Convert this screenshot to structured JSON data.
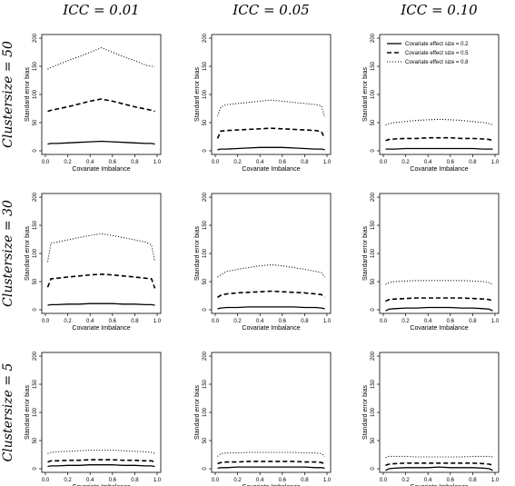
{
  "figure": {
    "col_titles": [
      "ICC = 0.01",
      "ICC = 0.05",
      "ICC = 0.10"
    ],
    "row_titles": [
      "Clustersize = 50",
      "Clustersize = 30",
      "Clustersize = 5"
    ]
  },
  "legend": {
    "entries": [
      {
        "label": "Covariate effect size = 0.2",
        "style": "solid"
      },
      {
        "label": "Covariate effect size = 0.5",
        "style": "dashed"
      },
      {
        "label": "Covariate effect size = 0.8",
        "style": "dotted"
      }
    ]
  },
  "chart_data": {
    "type": "line",
    "layout": "3x3 small multiples",
    "xlabel": "Covariate Imbalance",
    "ylabel": "Standard error bias",
    "xlim": [
      0,
      1
    ],
    "ylim": [
      0,
      200
    ],
    "x_ticks": [
      "0.0",
      "0.2",
      "0.4",
      "0.6",
      "0.8",
      "1.0"
    ],
    "y_ticks": [
      "0",
      "50",
      "100",
      "150",
      "200"
    ],
    "panels": [
      {
        "row": 0,
        "col": 0,
        "series": [
          {
            "style": "solid",
            "x": [
              0.02,
              0.05,
              0.1,
              0.2,
              0.3,
              0.4,
              0.5,
              0.6,
              0.7,
              0.8,
              0.9,
              0.95,
              0.98
            ],
            "y": [
              12,
              13,
              13,
              14,
              15,
              16,
              17,
              16,
              15,
              14,
              13,
              13,
              12
            ]
          },
          {
            "style": "dashed",
            "x": [
              0.02,
              0.05,
              0.1,
              0.2,
              0.3,
              0.4,
              0.5,
              0.6,
              0.7,
              0.8,
              0.9,
              0.95,
              0.98
            ],
            "y": [
              70,
              72,
              74,
              78,
              83,
              88,
              92,
              88,
              83,
              78,
              74,
              72,
              70
            ]
          },
          {
            "style": "dotted",
            "x": [
              0.02,
              0.05,
              0.1,
              0.2,
              0.3,
              0.4,
              0.5,
              0.6,
              0.7,
              0.8,
              0.9,
              0.95,
              0.98
            ],
            "y": [
              145,
              148,
              152,
              160,
              167,
              175,
              183,
              175,
              167,
              160,
              152,
              150,
              150
            ]
          }
        ]
      },
      {
        "row": 0,
        "col": 1,
        "series": [
          {
            "style": "solid",
            "x": [
              0.02,
              0.05,
              0.1,
              0.2,
              0.3,
              0.4,
              0.5,
              0.6,
              0.7,
              0.8,
              0.9,
              0.95,
              0.98
            ],
            "y": [
              2,
              3,
              3,
              4,
              5,
              6,
              6,
              6,
              5,
              4,
              3,
              3,
              2
            ]
          },
          {
            "style": "dashed",
            "x": [
              0.02,
              0.05,
              0.1,
              0.2,
              0.3,
              0.4,
              0.5,
              0.6,
              0.7,
              0.8,
              0.9,
              0.95,
              0.98
            ],
            "y": [
              22,
              35,
              36,
              37,
              38,
              39,
              40,
              39,
              38,
              37,
              36,
              34,
              22
            ]
          },
          {
            "style": "dotted",
            "x": [
              0.02,
              0.05,
              0.1,
              0.2,
              0.3,
              0.4,
              0.5,
              0.6,
              0.7,
              0.8,
              0.9,
              0.95,
              0.98
            ],
            "y": [
              62,
              78,
              82,
              84,
              86,
              88,
              90,
              88,
              86,
              84,
              82,
              80,
              60
            ]
          }
        ]
      },
      {
        "row": 0,
        "col": 2,
        "series": [
          {
            "style": "solid",
            "x": [
              0.02,
              0.05,
              0.1,
              0.2,
              0.3,
              0.4,
              0.5,
              0.6,
              0.7,
              0.8,
              0.9,
              0.95,
              0.98
            ],
            "y": [
              3,
              3,
              3,
              4,
              4,
              4,
              4,
              4,
              4,
              4,
              3,
              3,
              3
            ]
          },
          {
            "style": "dashed",
            "x": [
              0.02,
              0.05,
              0.1,
              0.2,
              0.3,
              0.4,
              0.5,
              0.6,
              0.7,
              0.8,
              0.9,
              0.95,
              0.98
            ],
            "y": [
              18,
              20,
              21,
              22,
              22,
              23,
              23,
              23,
              22,
              22,
              21,
              20,
              18
            ]
          },
          {
            "style": "dotted",
            "x": [
              0.02,
              0.05,
              0.1,
              0.2,
              0.3,
              0.4,
              0.5,
              0.6,
              0.7,
              0.8,
              0.9,
              0.95,
              0.98
            ],
            "y": [
              46,
              48,
              50,
              52,
              54,
              55,
              56,
              55,
              54,
              52,
              50,
              48,
              46
            ]
          }
        ]
      },
      {
        "row": 1,
        "col": 0,
        "series": [
          {
            "style": "solid",
            "x": [
              0.02,
              0.05,
              0.1,
              0.2,
              0.3,
              0.4,
              0.5,
              0.6,
              0.7,
              0.8,
              0.9,
              0.95,
              0.98
            ],
            "y": [
              8,
              9,
              9,
              10,
              10,
              11,
              11,
              11,
              10,
              10,
              9,
              9,
              8
            ]
          },
          {
            "style": "dashed",
            "x": [
              0.02,
              0.05,
              0.1,
              0.2,
              0.3,
              0.4,
              0.5,
              0.6,
              0.7,
              0.8,
              0.9,
              0.95,
              0.98
            ],
            "y": [
              40,
              55,
              56,
              58,
              60,
              62,
              63,
              62,
              60,
              58,
              56,
              55,
              38
            ]
          },
          {
            "style": "dotted",
            "x": [
              0.02,
              0.05,
              0.1,
              0.2,
              0.3,
              0.4,
              0.5,
              0.6,
              0.7,
              0.8,
              0.9,
              0.95,
              0.98
            ],
            "y": [
              85,
              118,
              120,
              124,
              128,
              132,
              135,
              132,
              128,
              124,
              120,
              115,
              85
            ]
          }
        ]
      },
      {
        "row": 1,
        "col": 1,
        "series": [
          {
            "style": "solid",
            "x": [
              0.02,
              0.05,
              0.1,
              0.2,
              0.3,
              0.4,
              0.5,
              0.6,
              0.7,
              0.8,
              0.9,
              0.95,
              0.98
            ],
            "y": [
              2,
              3,
              4,
              4,
              5,
              5,
              5,
              5,
              5,
              4,
              4,
              3,
              2
            ]
          },
          {
            "style": "dashed",
            "x": [
              0.02,
              0.05,
              0.1,
              0.2,
              0.3,
              0.4,
              0.5,
              0.6,
              0.7,
              0.8,
              0.9,
              0.95,
              0.98
            ],
            "y": [
              22,
              26,
              28,
              30,
              31,
              32,
              33,
              32,
              31,
              30,
              28,
              27,
              22
            ]
          },
          {
            "style": "dotted",
            "x": [
              0.02,
              0.05,
              0.1,
              0.2,
              0.3,
              0.4,
              0.5,
              0.6,
              0.7,
              0.8,
              0.9,
              0.95,
              0.98
            ],
            "y": [
              58,
              62,
              68,
              72,
              75,
              78,
              80,
              78,
              75,
              72,
              68,
              66,
              58
            ]
          }
        ]
      },
      {
        "row": 1,
        "col": 2,
        "series": [
          {
            "style": "solid",
            "x": [
              0.02,
              0.05,
              0.1,
              0.2,
              0.3,
              0.4,
              0.5,
              0.6,
              0.7,
              0.8,
              0.9,
              0.95,
              0.98
            ],
            "y": [
              -2,
              1,
              2,
              3,
              3,
              4,
              4,
              4,
              3,
              3,
              2,
              1,
              -2
            ]
          },
          {
            "style": "dashed",
            "x": [
              0.02,
              0.05,
              0.1,
              0.2,
              0.3,
              0.4,
              0.5,
              0.6,
              0.7,
              0.8,
              0.9,
              0.95,
              0.98
            ],
            "y": [
              15,
              18,
              19,
              20,
              21,
              21,
              21,
              21,
              21,
              20,
              19,
              18,
              15
            ]
          },
          {
            "style": "dotted",
            "x": [
              0.02,
              0.05,
              0.1,
              0.2,
              0.3,
              0.4,
              0.5,
              0.6,
              0.7,
              0.8,
              0.9,
              0.95,
              0.98
            ],
            "y": [
              45,
              48,
              50,
              51,
              52,
              52,
              52,
              52,
              52,
              51,
              50,
              48,
              45
            ]
          }
        ]
      },
      {
        "row": 2,
        "col": 0,
        "series": [
          {
            "style": "solid",
            "x": [
              0.02,
              0.05,
              0.1,
              0.2,
              0.3,
              0.4,
              0.5,
              0.6,
              0.7,
              0.8,
              0.9,
              0.95,
              0.98
            ],
            "y": [
              4,
              5,
              5,
              6,
              6,
              7,
              7,
              7,
              6,
              6,
              5,
              5,
              4
            ]
          },
          {
            "style": "dashed",
            "x": [
              0.02,
              0.05,
              0.1,
              0.2,
              0.3,
              0.4,
              0.5,
              0.6,
              0.7,
              0.8,
              0.9,
              0.95,
              0.98
            ],
            "y": [
              12,
              14,
              14,
              15,
              15,
              16,
              16,
              16,
              15,
              15,
              14,
              14,
              12
            ]
          },
          {
            "style": "dotted",
            "x": [
              0.02,
              0.05,
              0.1,
              0.2,
              0.3,
              0.4,
              0.5,
              0.6,
              0.7,
              0.8,
              0.9,
              0.95,
              0.98
            ],
            "y": [
              27,
              29,
              30,
              31,
              32,
              33,
              33,
              33,
              32,
              31,
              30,
              29,
              27
            ]
          }
        ]
      },
      {
        "row": 2,
        "col": 1,
        "series": [
          {
            "style": "solid",
            "x": [
              0.02,
              0.05,
              0.1,
              0.2,
              0.3,
              0.4,
              0.5,
              0.6,
              0.7,
              0.8,
              0.9,
              0.95,
              0.98
            ],
            "y": [
              1,
              2,
              2,
              3,
              3,
              3,
              3,
              3,
              3,
              3,
              2,
              2,
              1
            ]
          },
          {
            "style": "dashed",
            "x": [
              0.02,
              0.05,
              0.1,
              0.2,
              0.3,
              0.4,
              0.5,
              0.6,
              0.7,
              0.8,
              0.9,
              0.95,
              0.98
            ],
            "y": [
              9,
              11,
              12,
              12,
              13,
              13,
              13,
              13,
              13,
              12,
              12,
              11,
              9
            ]
          },
          {
            "style": "dotted",
            "x": [
              0.02,
              0.05,
              0.1,
              0.2,
              0.3,
              0.4,
              0.5,
              0.6,
              0.7,
              0.8,
              0.9,
              0.95,
              0.98
            ],
            "y": [
              22,
              27,
              28,
              28,
              29,
              29,
              29,
              29,
              29,
              28,
              28,
              27,
              22
            ]
          }
        ]
      },
      {
        "row": 2,
        "col": 2,
        "series": [
          {
            "style": "solid",
            "x": [
              0.02,
              0.05,
              0.1,
              0.2,
              0.3,
              0.4,
              0.5,
              0.6,
              0.7,
              0.8,
              0.9,
              0.95,
              0.98
            ],
            "y": [
              -3,
              0,
              1,
              2,
              2,
              2,
              3,
              2,
              2,
              2,
              1,
              0,
              -3
            ]
          },
          {
            "style": "dashed",
            "x": [
              0.02,
              0.05,
              0.1,
              0.2,
              0.3,
              0.4,
              0.5,
              0.6,
              0.7,
              0.8,
              0.9,
              0.95,
              0.98
            ],
            "y": [
              6,
              8,
              9,
              10,
              10,
              10,
              10,
              10,
              10,
              10,
              9,
              8,
              6
            ]
          },
          {
            "style": "dotted",
            "x": [
              0.02,
              0.05,
              0.1,
              0.2,
              0.3,
              0.4,
              0.5,
              0.6,
              0.7,
              0.8,
              0.9,
              0.95,
              0.98
            ],
            "y": [
              20,
              22,
              22,
              22,
              21,
              21,
              21,
              21,
              21,
              22,
              22,
              22,
              21
            ]
          }
        ]
      }
    ]
  }
}
